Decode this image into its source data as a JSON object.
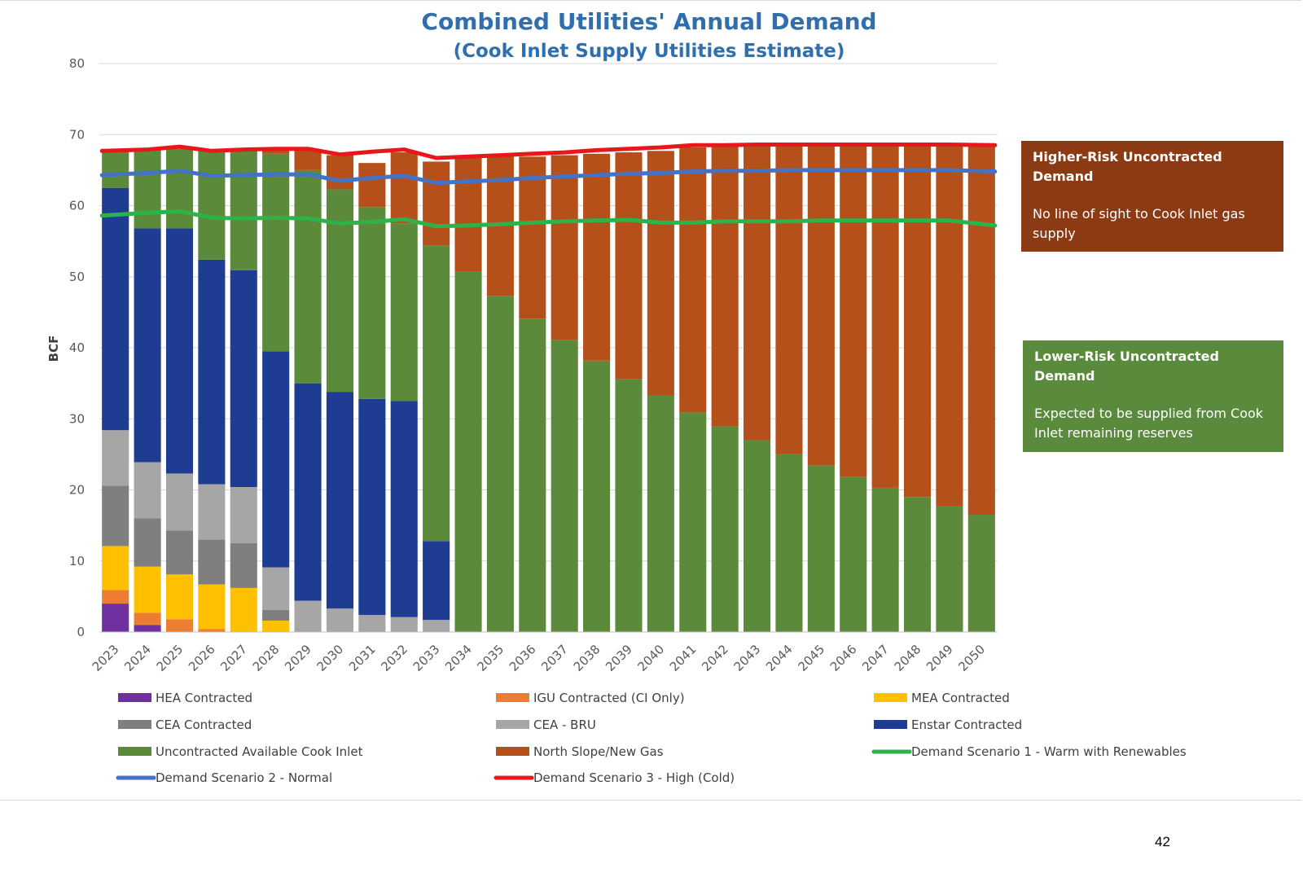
{
  "page": {
    "number": "42"
  },
  "callouts": {
    "higher_risk": {
      "title": "Higher-Risk Uncontracted Demand",
      "body": "No line of sight to Cook Inlet gas supply",
      "color": "#8b3a14"
    },
    "lower_risk": {
      "title": "Lower-Risk Uncontracted Demand",
      "body": "Expected to be supplied from Cook Inlet remaining reserves",
      "color": "#5a8a3c"
    }
  },
  "chart_data": {
    "type": "bar",
    "stacked": true,
    "title": "Combined Utilities' Annual Demand",
    "subtitle": "(Cook Inlet Supply Utilities Estimate)",
    "xlabel": "",
    "ylabel": "BCF",
    "ylim": [
      0,
      80
    ],
    "yticks": [
      0,
      10,
      20,
      30,
      40,
      50,
      60,
      70,
      80
    ],
    "grid": true,
    "legend_position": "bottom",
    "categories": [
      "2023",
      "2024",
      "2025",
      "2026",
      "2027",
      "2028",
      "2029",
      "2030",
      "2031",
      "2032",
      "2033",
      "2034",
      "2035",
      "2036",
      "2037",
      "2038",
      "2039",
      "2040",
      "2041",
      "2042",
      "2043",
      "2044",
      "2045",
      "2046",
      "2047",
      "2048",
      "2049",
      "2050"
    ],
    "series": [
      {
        "name": "HEA Contracted",
        "color": "#7030a0",
        "values": [
          4.0,
          1.0,
          0,
          0,
          0,
          0,
          0,
          0,
          0,
          0,
          0,
          0,
          0,
          0,
          0,
          0,
          0,
          0,
          0,
          0,
          0,
          0,
          0,
          0,
          0,
          0,
          0,
          0
        ]
      },
      {
        "name": "IGU Contracted (CI Only)",
        "color": "#ed7d31",
        "values": [
          1.9,
          1.7,
          1.8,
          0.4,
          0,
          0,
          0,
          0,
          0,
          0,
          0,
          0,
          0,
          0,
          0,
          0,
          0,
          0,
          0,
          0,
          0,
          0,
          0,
          0,
          0,
          0,
          0,
          0
        ]
      },
      {
        "name": "MEA Contracted",
        "color": "#ffc000",
        "values": [
          6.2,
          6.5,
          6.3,
          6.3,
          6.2,
          1.6,
          0,
          0,
          0,
          0,
          0,
          0,
          0,
          0,
          0,
          0,
          0,
          0,
          0,
          0,
          0,
          0,
          0,
          0,
          0,
          0,
          0,
          0
        ]
      },
      {
        "name": "CEA Contracted",
        "color": "#7f7f7f",
        "values": [
          8.5,
          6.8,
          6.2,
          6.3,
          6.3,
          1.5,
          0,
          0,
          0,
          0,
          0,
          0,
          0,
          0,
          0,
          0,
          0,
          0,
          0,
          0,
          0,
          0,
          0,
          0,
          0,
          0,
          0,
          0
        ]
      },
      {
        "name": "CEA - BRU",
        "color": "#a6a6a6",
        "values": [
          7.8,
          7.9,
          8.0,
          7.8,
          7.9,
          6.0,
          4.4,
          3.3,
          2.4,
          2.1,
          1.7,
          0,
          0,
          0,
          0,
          0,
          0,
          0,
          0,
          0,
          0,
          0,
          0,
          0,
          0,
          0,
          0,
          0
        ]
      },
      {
        "name": "Enstar Contracted",
        "color": "#1f3c93",
        "values": [
          34.1,
          32.9,
          34.5,
          31.6,
          30.5,
          30.4,
          30.6,
          30.5,
          30.4,
          30.4,
          11.1,
          0,
          0,
          0,
          0,
          0,
          0,
          0,
          0,
          0,
          0,
          0,
          0,
          0,
          0,
          0,
          0,
          0
        ]
      },
      {
        "name": "Uncontracted Available Cook Inlet",
        "color": "#5b8a3b",
        "values": [
          5.3,
          11.0,
          11.2,
          15.3,
          16.8,
          27.8,
          30.0,
          28.5,
          27.0,
          25.0,
          41.6,
          50.7,
          47.3,
          44.1,
          41.1,
          38.2,
          35.6,
          33.3,
          30.9,
          28.9,
          27.0,
          25.0,
          23.4,
          21.8,
          20.3,
          19.0,
          17.7,
          16.5
        ]
      },
      {
        "name": "North Slope/New Gas",
        "color": "#b5501a",
        "values": [
          0,
          0,
          0,
          0,
          0,
          0.8,
          2.8,
          4.8,
          6.2,
          10.0,
          11.8,
          16.1,
          19.6,
          22.8,
          26.0,
          29.1,
          31.9,
          34.4,
          37.3,
          39.4,
          41.4,
          43.5,
          45.2,
          46.9,
          48.4,
          49.7,
          51.0,
          52.1
        ]
      }
    ],
    "lines": [
      {
        "name": "Demand Scenario 1 - Warm with Renewables",
        "color": "#2db34a",
        "values": [
          58.6,
          59.0,
          59.2,
          58.3,
          58.2,
          58.3,
          58.2,
          57.5,
          57.7,
          58.1,
          57.1,
          57.2,
          57.4,
          57.6,
          57.8,
          57.9,
          58.0,
          57.6,
          57.6,
          57.8,
          57.8,
          57.8,
          57.9,
          57.9,
          57.9,
          57.9,
          57.9,
          57.2
        ]
      },
      {
        "name": "Demand Scenario 2 - Normal",
        "color": "#4472c4",
        "values": [
          64.3,
          64.6,
          64.9,
          64.2,
          64.3,
          64.4,
          64.4,
          63.5,
          63.9,
          64.2,
          63.2,
          63.4,
          63.6,
          63.9,
          64.1,
          64.3,
          64.5,
          64.6,
          64.8,
          64.9,
          64.9,
          65.0,
          65.0,
          65.0,
          65.0,
          65.0,
          65.0,
          64.8
        ]
      },
      {
        "name": "Demand Scenario 3 - High (Cold)",
        "color": "#e8171b",
        "values": [
          67.7,
          67.9,
          68.3,
          67.7,
          67.9,
          68.0,
          68.0,
          67.2,
          67.6,
          67.9,
          66.7,
          66.9,
          67.1,
          67.3,
          67.5,
          67.8,
          68.0,
          68.2,
          68.5,
          68.5,
          68.6,
          68.6,
          68.6,
          68.6,
          68.6,
          68.6,
          68.6,
          68.5
        ]
      }
    ],
    "legend": [
      {
        "name": "HEA Contracted",
        "color": "#7030a0",
        "kind": "bar"
      },
      {
        "name": "IGU Contracted (CI Only)",
        "color": "#ed7d31",
        "kind": "bar"
      },
      {
        "name": "MEA Contracted",
        "color": "#ffc000",
        "kind": "bar"
      },
      {
        "name": "CEA Contracted",
        "color": "#7f7f7f",
        "kind": "bar"
      },
      {
        "name": "CEA - BRU",
        "color": "#a6a6a6",
        "kind": "bar"
      },
      {
        "name": "Enstar Contracted",
        "color": "#1f3c93",
        "kind": "bar"
      },
      {
        "name": "Uncontracted Available Cook Inlet",
        "color": "#5b8a3b",
        "kind": "bar"
      },
      {
        "name": "North Slope/New Gas",
        "color": "#b5501a",
        "kind": "bar"
      },
      {
        "name": "Demand Scenario 1 - Warm with Renewables",
        "color": "#2db34a",
        "kind": "line"
      },
      {
        "name": "Demand Scenario 2 - Normal",
        "color": "#4472c4",
        "kind": "line"
      },
      {
        "name": "Demand Scenario 3 - High (Cold)",
        "color": "#e8171b",
        "kind": "line"
      }
    ]
  }
}
